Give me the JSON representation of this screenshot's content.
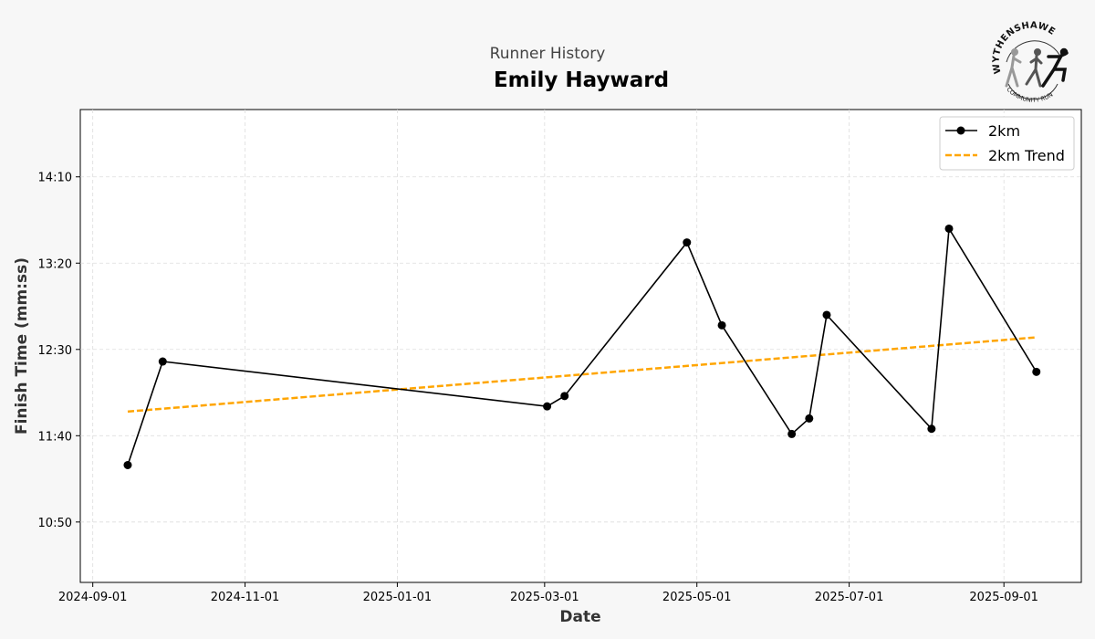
{
  "chart_data": {
    "type": "line",
    "suptitle": "Runner History",
    "title": "Emily Hayward",
    "xlabel": "Date",
    "ylabel": "Finish Time (mm:ss)",
    "xlim": [
      "2024-08-27",
      "2025-10-02"
    ],
    "ylim": [
      "10:15",
      "14:49"
    ],
    "x_ticks": [
      "2024-09-01",
      "2024-11-01",
      "2025-01-01",
      "2025-03-01",
      "2025-05-01",
      "2025-07-01",
      "2025-09-01"
    ],
    "y_ticks": [
      "10:50",
      "11:40",
      "12:30",
      "13:20",
      "14:10"
    ],
    "grid": true,
    "legend_position": "top-right",
    "series": [
      {
        "name": "2km",
        "color": "#000000",
        "style": "solid-with-markers",
        "x": [
          "2024-09-15",
          "2024-09-29",
          "2025-03-02",
          "2025-03-09",
          "2025-04-27",
          "2025-05-11",
          "2025-06-08",
          "2025-06-15",
          "2025-06-22",
          "2025-08-03",
          "2025-08-10",
          "2025-09-14"
        ],
        "y": [
          "11:23",
          "12:23",
          "11:57",
          "12:03",
          "13:32",
          "12:44",
          "11:41",
          "11:50",
          "12:50",
          "11:44",
          "13:40",
          "12:17"
        ]
      },
      {
        "name": "2km Trend",
        "color": "#FFA500",
        "style": "dashed",
        "x": [
          "2024-09-15",
          "2025-09-14"
        ],
        "y": [
          "11:54",
          "12:37"
        ]
      }
    ]
  },
  "logo": {
    "top_text": "WYTHENSHAWE",
    "bottom_text": "COMMUNITY RUN"
  }
}
